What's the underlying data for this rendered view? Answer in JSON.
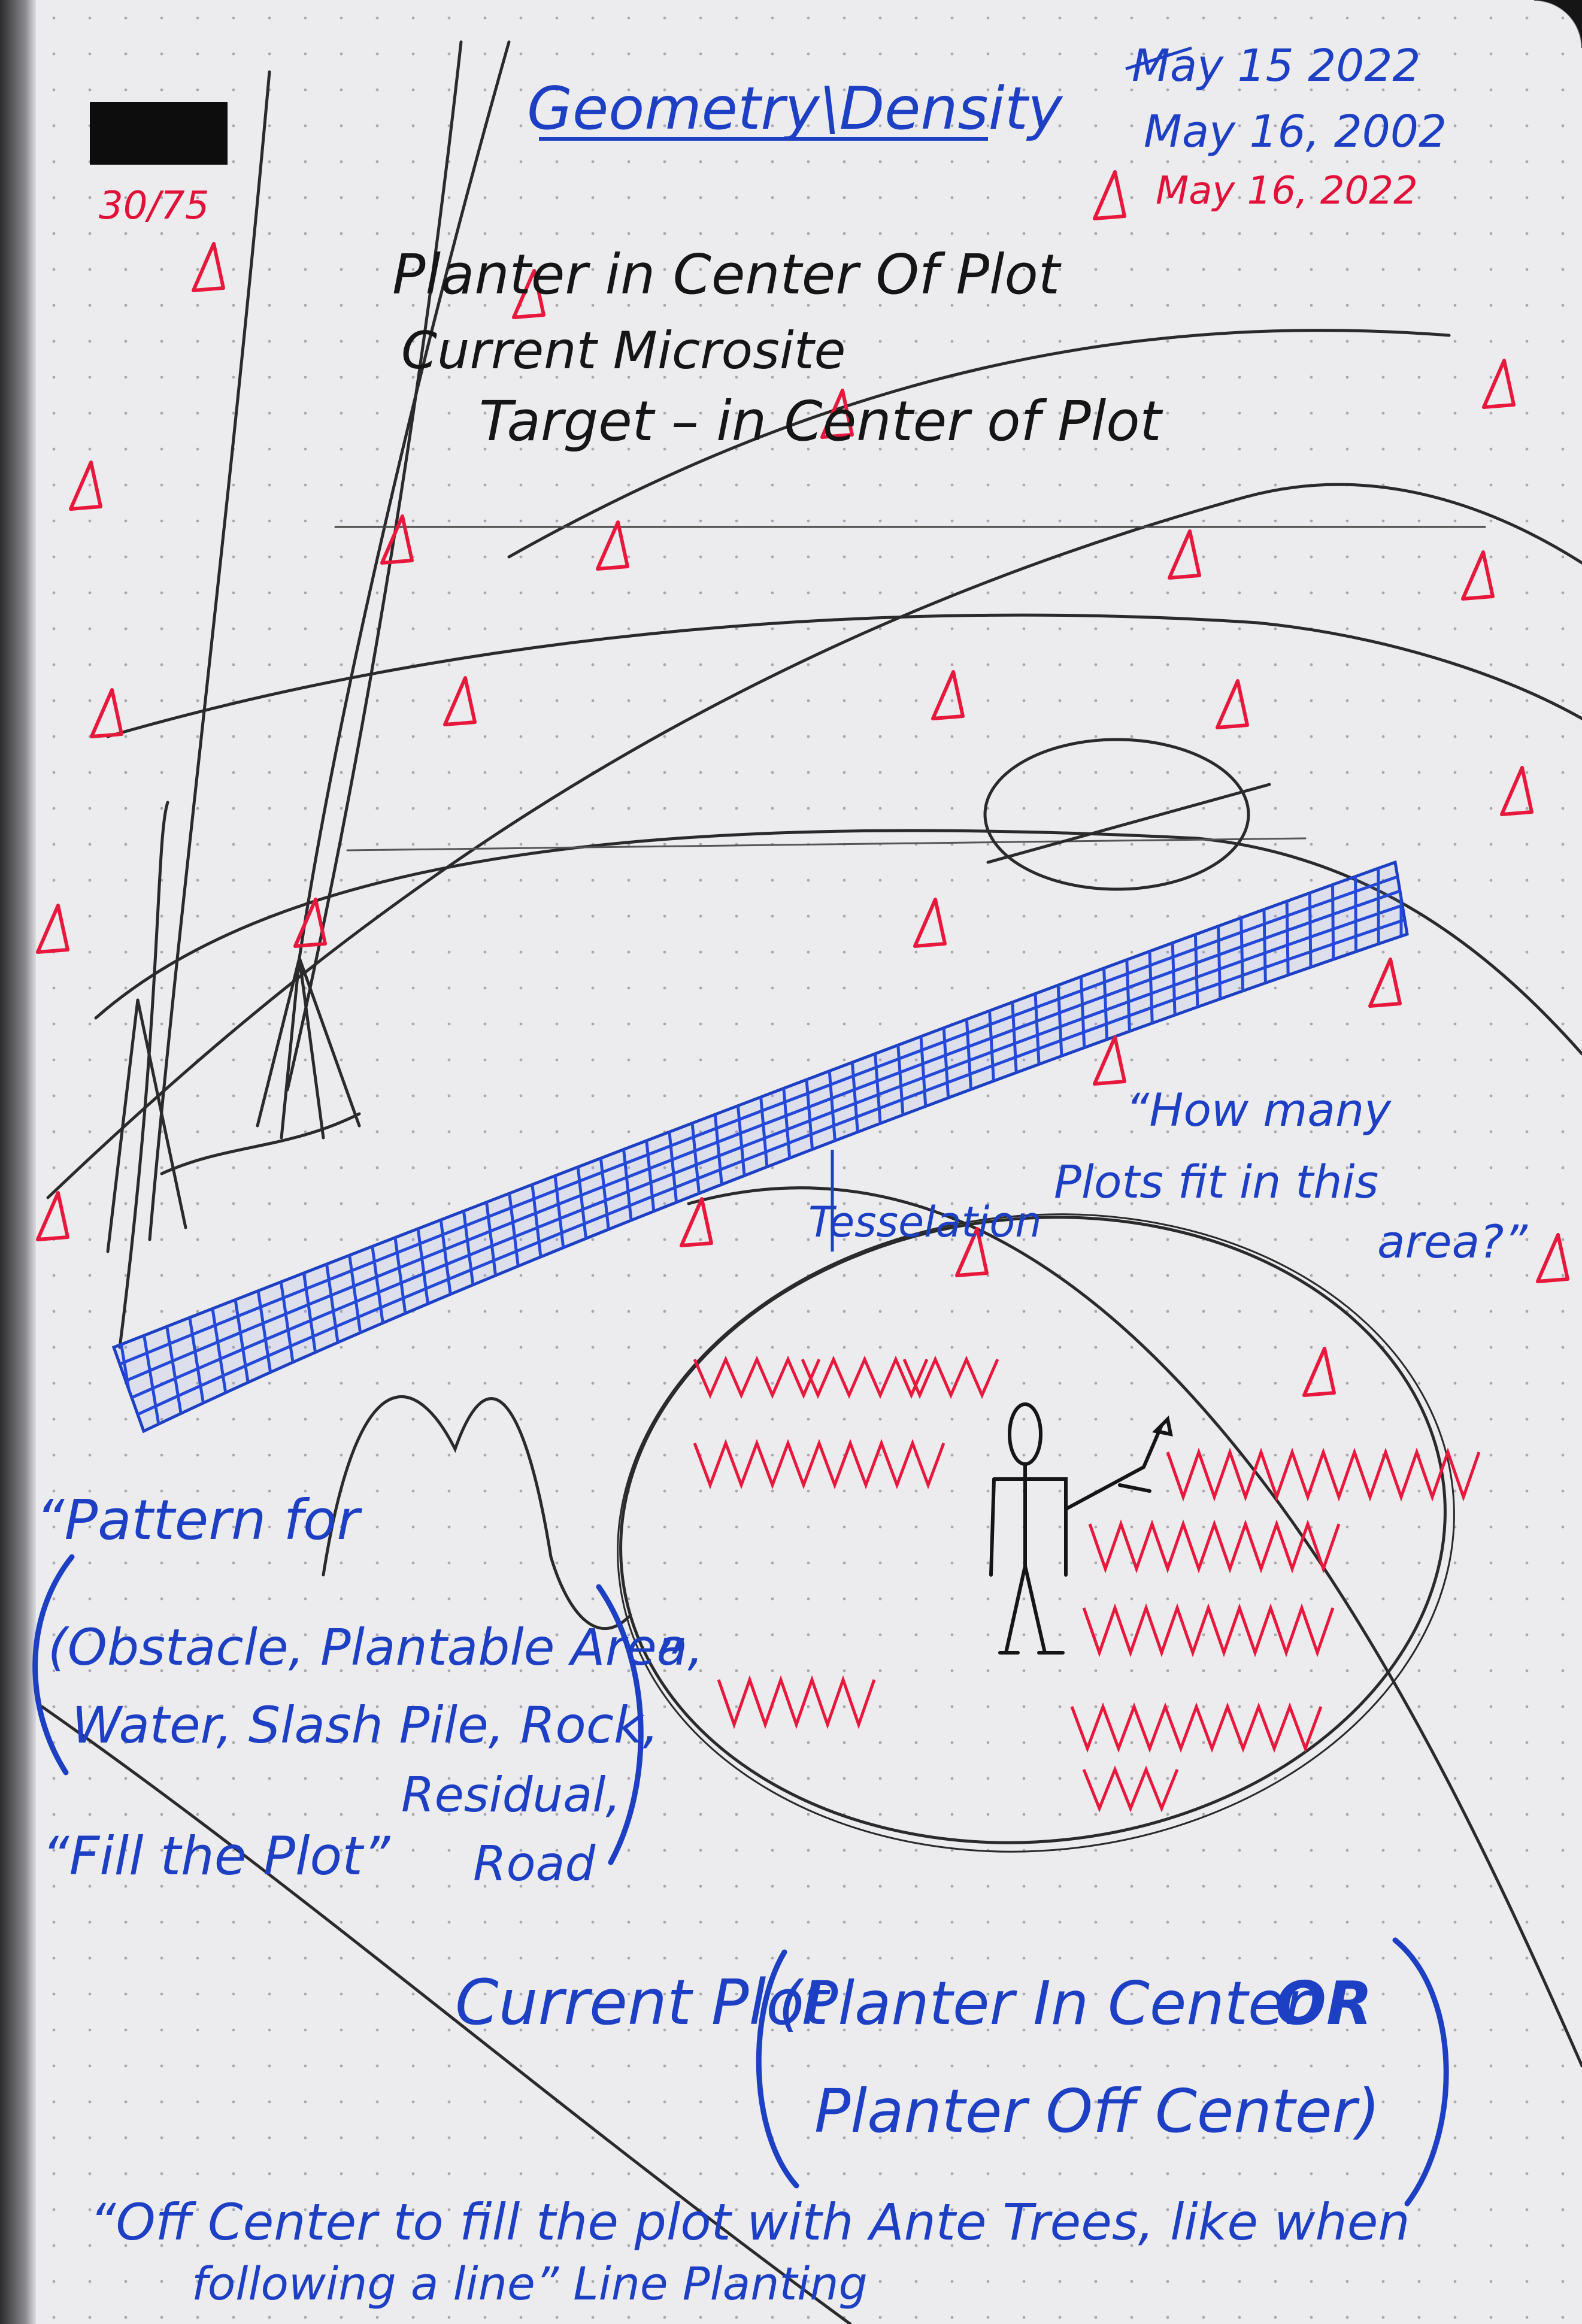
{
  "title": "Geometry\\Density",
  "dates": [
    "May 15 2022",
    "May 16, 2002",
    "May 16, 2022"
  ],
  "corner_note": "30/75",
  "notes_black": {
    "line1": "Planter in Center Of Plot",
    "line2": "Current Microsite",
    "line3": "Target  –  in Center of Plot"
  },
  "tesselation_label": "Tesselation",
  "question": {
    "line1": "“How many",
    "line2": "Plots fit in this",
    "line3": "area?”"
  },
  "pattern": {
    "line1": "“Pattern for",
    "line2": "(Obstacle, Plantable Area,",
    "line3": "Water, Slash Pile, Rock,",
    "line4": "Residual,",
    "line5": "Road",
    "close_quote": "”"
  },
  "fill_plot": "“Fill the Plot”",
  "current_plot": {
    "label": "Current Plot",
    "option1": "(Planter In Center",
    "or": "OR",
    "option2": "Planter Off Center)"
  },
  "footer": {
    "line1": "“Off Center to fill the plot with Ante Trees, like when",
    "line2": "following a line”  Line Planting"
  },
  "colors": {
    "paper": "#ecebee",
    "ink_black": "#151515",
    "ink_blue": "#1d3fc4",
    "ink_red": "#e0123a"
  }
}
